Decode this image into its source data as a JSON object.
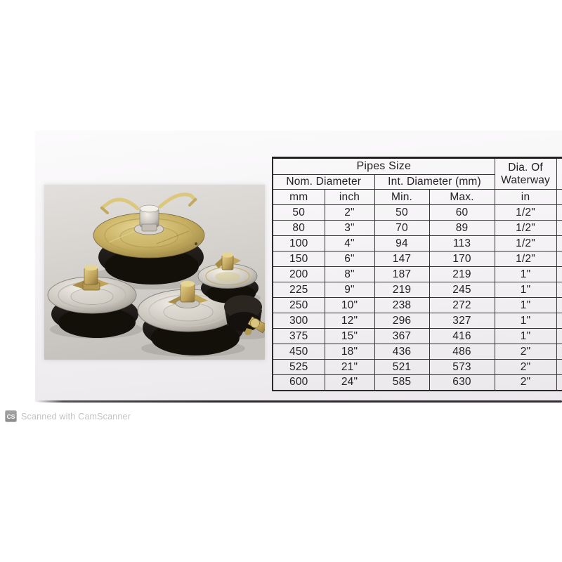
{
  "watermark": {
    "logo_text": "CS",
    "label": "Scanned with CamScanner"
  },
  "photo": {
    "alt": "Five pipe test plugs with wing-nut handles, metal discs and black rubber seal rings",
    "colors": {
      "background_top": "#e0ddda",
      "background_bottom": "#c7c4c0",
      "rubber": "#1c1815",
      "steel_light": "#efece5",
      "steel_dark": "#938f87",
      "brass_light": "#e2cf86",
      "brass_dark": "#8f7a3c"
    }
  },
  "table": {
    "group_pipes_size": "Pipes Size",
    "group_waterway_line1": "Dia. Of",
    "group_waterway_line2": "Waterway",
    "sub_nominal": "Nom. Diameter",
    "sub_internal": "Int. Diameter (mm)",
    "units": [
      "mm",
      "inch",
      "Min.",
      "Max.",
      "in"
    ],
    "rows": [
      [
        "50",
        "2\"",
        "50",
        "60",
        "1/2\""
      ],
      [
        "80",
        "3\"",
        "70",
        "89",
        "1/2\""
      ],
      [
        "100",
        "4\"",
        "94",
        "113",
        "1/2\""
      ],
      [
        "150",
        "6\"",
        "147",
        "170",
        "1/2\""
      ],
      [
        "200",
        "8\"",
        "187",
        "219",
        "1\""
      ],
      [
        "225",
        "9\"",
        "219",
        "245",
        "1\""
      ],
      [
        "250",
        "10\"",
        "238",
        "272",
        "1\""
      ],
      [
        "300",
        "12\"",
        "296",
        "327",
        "1\""
      ],
      [
        "375",
        "15\"",
        "367",
        "416",
        "1\""
      ],
      [
        "450",
        "18\"",
        "436",
        "486",
        "2\""
      ],
      [
        "525",
        "21\"",
        "521",
        "573",
        "2\""
      ],
      [
        "600",
        "24\"",
        "585",
        "630",
        "2\""
      ]
    ]
  }
}
